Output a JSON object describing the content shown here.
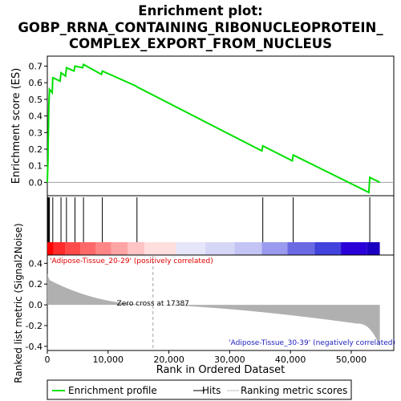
{
  "chart_data": {
    "type": "line",
    "title_line1": "Enrichment plot:",
    "title_line2": "GOBP_RRNA_CONTAINING_RIBONUCLEOPROTEIN_",
    "title_line3": "COMPLEX_EXPORT_FROM_NUCLEUS",
    "top_ylabel": "Enrichment score (ES)",
    "bottom_ylabel": "Ranked list metric (Signal2Noise)",
    "xlabel": "Rank in Ordered Dataset",
    "xlim": [
      0,
      57000
    ],
    "top_ylim": [
      -0.08,
      0.76
    ],
    "bottom_ylim": [
      -0.44,
      0.48
    ],
    "x_ticks": [
      0,
      10000,
      20000,
      30000,
      40000,
      50000
    ],
    "x_tick_labels": [
      "0",
      "10,000",
      "20,000",
      "30,000",
      "40,000",
      "50,000"
    ],
    "top_y_ticks": [
      0.0,
      0.1,
      0.2,
      0.3,
      0.4,
      0.5,
      0.6,
      0.7
    ],
    "top_y_tick_labels": [
      "0.0",
      "0.1",
      "0.2",
      "0.3",
      "0.4",
      "0.5",
      "0.6",
      "0.7"
    ],
    "bottom_y_ticks": [
      -0.4,
      -0.2,
      0.0,
      0.2,
      0.4
    ],
    "bottom_y_tick_labels": [
      "-0.4",
      "-0.2",
      "0.0",
      "0.2",
      "0.4"
    ],
    "es_profile": [
      [
        0,
        0.0
      ],
      [
        100,
        0.13
      ],
      [
        150,
        0.24
      ],
      [
        200,
        0.35
      ],
      [
        250,
        0.46
      ],
      [
        350,
        0.56
      ],
      [
        800,
        0.54
      ],
      [
        900,
        0.63
      ],
      [
        2100,
        0.61
      ],
      [
        2250,
        0.66
      ],
      [
        3000,
        0.64
      ],
      [
        3150,
        0.69
      ],
      [
        4400,
        0.67
      ],
      [
        4550,
        0.7
      ],
      [
        5800,
        0.69
      ],
      [
        5950,
        0.71
      ],
      [
        8900,
        0.65
      ],
      [
        9050,
        0.67
      ],
      [
        14600,
        0.58
      ],
      [
        14750,
        0.575
      ],
      [
        35300,
        0.19
      ],
      [
        35450,
        0.22
      ],
      [
        40300,
        0.13
      ],
      [
        40450,
        0.165
      ],
      [
        52900,
        -0.06
      ],
      [
        53050,
        0.03
      ],
      [
        54700,
        0.0
      ]
    ],
    "hits": [
      100,
      150,
      200,
      250,
      350,
      900,
      2250,
      3150,
      4550,
      5950,
      9050,
      14750,
      35450,
      40450,
      53050
    ],
    "zero_cross": 17387,
    "zero_cross_label": "Zero cross at 17387",
    "pos_label": "'Adipose-Tissue_20-29' (positively correlated)",
    "neg_label": "'Adipose-Tissue_30-39' (negatively correlated)",
    "n_total": 54700,
    "colors": {
      "es_line": "#00e000",
      "metric_fill": "#b0b0b0",
      "pos_label": "#e00000",
      "neg_label": "#2020c0"
    },
    "heat_bands": [
      [
        0,
        1000,
        "#ff0000"
      ],
      [
        1000,
        3000,
        "#ff2a2a"
      ],
      [
        3000,
        5500,
        "#ff4a4a"
      ],
      [
        5500,
        8000,
        "#ff6868"
      ],
      [
        8000,
        10500,
        "#ff8686"
      ],
      [
        10500,
        13200,
        "#ffa4a4"
      ],
      [
        13200,
        16000,
        "#ffc4c4"
      ],
      [
        16000,
        21200,
        "#ffdede"
      ],
      [
        21200,
        26000,
        "#e6e6fa"
      ],
      [
        26000,
        30800,
        "#d6d6f6"
      ],
      [
        30800,
        35300,
        "#c4c4f4"
      ],
      [
        35300,
        39500,
        "#9a9aee"
      ],
      [
        39500,
        44000,
        "#6a6ae4"
      ],
      [
        44000,
        48300,
        "#4242dc"
      ],
      [
        48300,
        52600,
        "#2a00d8"
      ],
      [
        52600,
        54700,
        "#1a00c0"
      ]
    ],
    "legend": [
      "Enrichment profile",
      "Hits",
      "Ranking metric scores"
    ]
  }
}
